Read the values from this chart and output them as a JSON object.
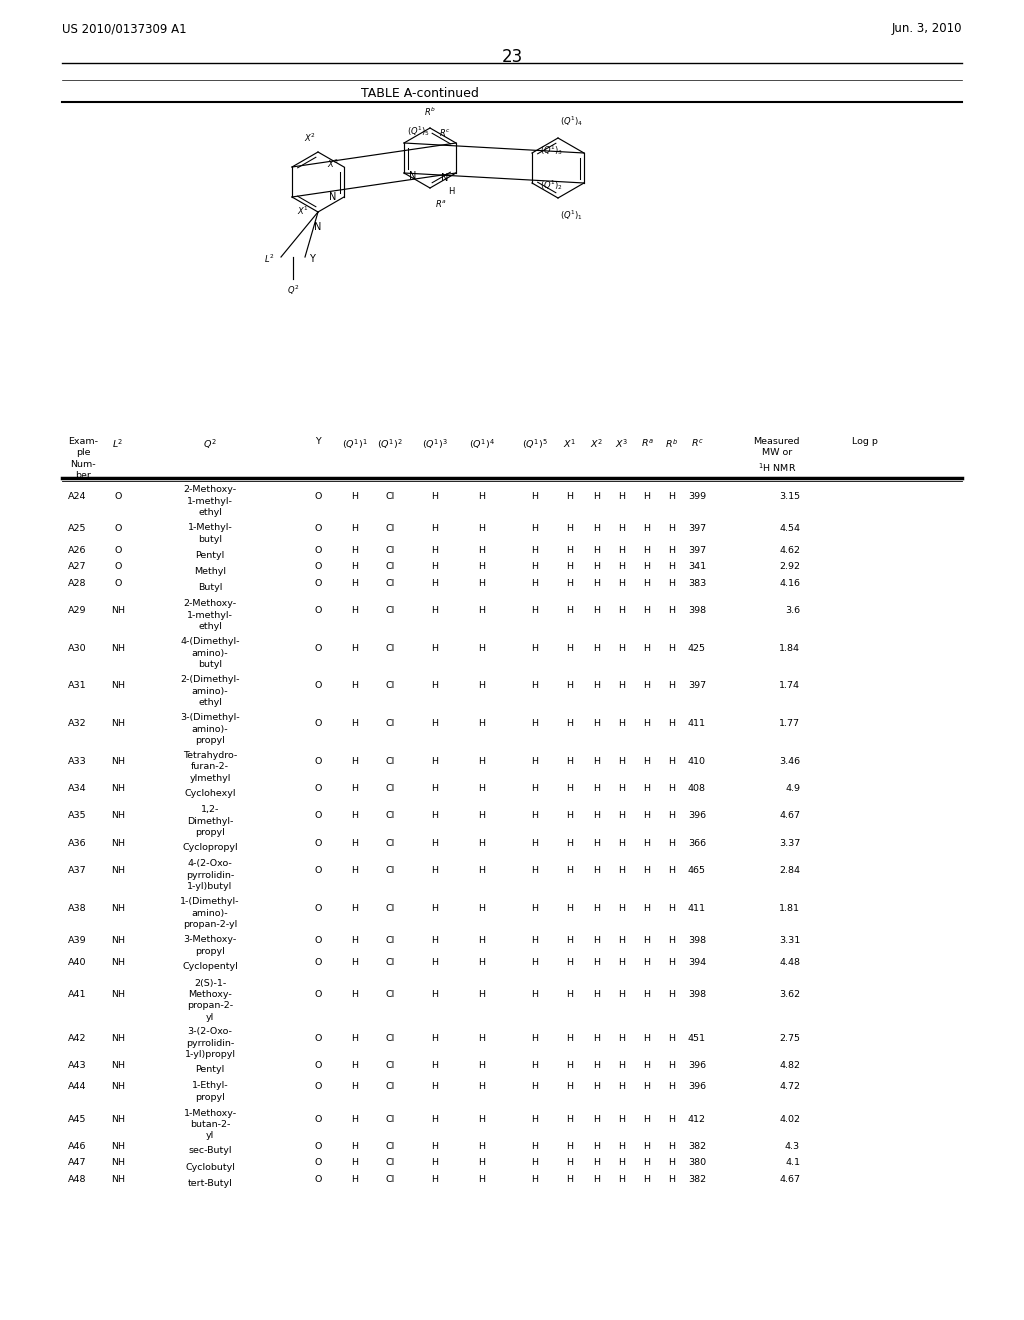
{
  "page_header_left": "US 2010/0137309 A1",
  "page_header_right": "Jun. 3, 2010",
  "page_number": "23",
  "table_title": "TABLE A-continued",
  "rows": [
    [
      "A24",
      "O",
      "2-Methoxy-\n1-methyl-\nethyl",
      "O",
      "H",
      "Cl",
      "H",
      "H",
      "H",
      "H",
      "H",
      "H",
      "H",
      "H",
      "399",
      "3.15"
    ],
    [
      "A25",
      "O",
      "1-Methyl-\nbutyl",
      "O",
      "H",
      "Cl",
      "H",
      "H",
      "H",
      "H",
      "H",
      "H",
      "H",
      "H",
      "397",
      "4.54"
    ],
    [
      "A26",
      "O",
      "Pentyl",
      "O",
      "H",
      "Cl",
      "H",
      "H",
      "H",
      "H",
      "H",
      "H",
      "H",
      "H",
      "397",
      "4.62"
    ],
    [
      "A27",
      "O",
      "Methyl",
      "O",
      "H",
      "Cl",
      "H",
      "H",
      "H",
      "H",
      "H",
      "H",
      "H",
      "H",
      "341",
      "2.92"
    ],
    [
      "A28",
      "O",
      "Butyl",
      "O",
      "H",
      "Cl",
      "H",
      "H",
      "H",
      "H",
      "H",
      "H",
      "H",
      "H",
      "383",
      "4.16"
    ],
    [
      "A29",
      "NH",
      "2-Methoxy-\n1-methyl-\nethyl",
      "O",
      "H",
      "Cl",
      "H",
      "H",
      "H",
      "H",
      "H",
      "H",
      "H",
      "H",
      "398",
      "3.6"
    ],
    [
      "A30",
      "NH",
      "4-(Dimethyl-\namino)-\nbutyl",
      "O",
      "H",
      "Cl",
      "H",
      "H",
      "H",
      "H",
      "H",
      "H",
      "H",
      "H",
      "425",
      "1.84"
    ],
    [
      "A31",
      "NH",
      "2-(Dimethyl-\namino)-\nethyl",
      "O",
      "H",
      "Cl",
      "H",
      "H",
      "H",
      "H",
      "H",
      "H",
      "H",
      "H",
      "397",
      "1.74"
    ],
    [
      "A32",
      "NH",
      "3-(Dimethyl-\namino)-\npropyl",
      "O",
      "H",
      "Cl",
      "H",
      "H",
      "H",
      "H",
      "H",
      "H",
      "H",
      "H",
      "411",
      "1.77"
    ],
    [
      "A33",
      "NH",
      "Tetrahydro-\nfuran-2-\nylmethyl",
      "O",
      "H",
      "Cl",
      "H",
      "H",
      "H",
      "H",
      "H",
      "H",
      "H",
      "H",
      "410",
      "3.46"
    ],
    [
      "A34",
      "NH",
      "Cyclohexyl",
      "O",
      "H",
      "Cl",
      "H",
      "H",
      "H",
      "H",
      "H",
      "H",
      "H",
      "H",
      "408",
      "4.9"
    ],
    [
      "A35",
      "NH",
      "1,2-\nDimethyl-\npropyl",
      "O",
      "H",
      "Cl",
      "H",
      "H",
      "H",
      "H",
      "H",
      "H",
      "H",
      "H",
      "396",
      "4.67"
    ],
    [
      "A36",
      "NH",
      "Cyclopropyl",
      "O",
      "H",
      "Cl",
      "H",
      "H",
      "H",
      "H",
      "H",
      "H",
      "H",
      "H",
      "366",
      "3.37"
    ],
    [
      "A37",
      "NH",
      "4-(2-Oxo-\npyrrolidin-\n1-yl)butyl",
      "O",
      "H",
      "Cl",
      "H",
      "H",
      "H",
      "H",
      "H",
      "H",
      "H",
      "H",
      "465",
      "2.84"
    ],
    [
      "A38",
      "NH",
      "1-(Dimethyl-\namino)-\npropan-2-yl",
      "O",
      "H",
      "Cl",
      "H",
      "H",
      "H",
      "H",
      "H",
      "H",
      "H",
      "H",
      "411",
      "1.81"
    ],
    [
      "A39",
      "NH",
      "3-Methoxy-\npropyl",
      "O",
      "H",
      "Cl",
      "H",
      "H",
      "H",
      "H",
      "H",
      "H",
      "H",
      "H",
      "398",
      "3.31"
    ],
    [
      "A40",
      "NH",
      "Cyclopentyl",
      "O",
      "H",
      "Cl",
      "H",
      "H",
      "H",
      "H",
      "H",
      "H",
      "H",
      "H",
      "394",
      "4.48"
    ],
    [
      "A41",
      "NH",
      "2(S)-1-\nMethoxy-\npropan-2-\nyl",
      "O",
      "H",
      "Cl",
      "H",
      "H",
      "H",
      "H",
      "H",
      "H",
      "H",
      "H",
      "398",
      "3.62"
    ],
    [
      "A42",
      "NH",
      "3-(2-Oxo-\npyrrolidin-\n1-yl)propyl",
      "O",
      "H",
      "Cl",
      "H",
      "H",
      "H",
      "H",
      "H",
      "H",
      "H",
      "H",
      "451",
      "2.75"
    ],
    [
      "A43",
      "NH",
      "Pentyl",
      "O",
      "H",
      "Cl",
      "H",
      "H",
      "H",
      "H",
      "H",
      "H",
      "H",
      "H",
      "396",
      "4.82"
    ],
    [
      "A44",
      "NH",
      "1-Ethyl-\npropyl",
      "O",
      "H",
      "Cl",
      "H",
      "H",
      "H",
      "H",
      "H",
      "H",
      "H",
      "H",
      "396",
      "4.72"
    ],
    [
      "A45",
      "NH",
      "1-Methoxy-\nbutan-2-\nyl",
      "O",
      "H",
      "Cl",
      "H",
      "H",
      "H",
      "H",
      "H",
      "H",
      "H",
      "H",
      "412",
      "4.02"
    ],
    [
      "A46",
      "NH",
      "sec-Butyl",
      "O",
      "H",
      "Cl",
      "H",
      "H",
      "H",
      "H",
      "H",
      "H",
      "H",
      "H",
      "382",
      "4.3"
    ],
    [
      "A47",
      "NH",
      "Cyclobutyl",
      "O",
      "H",
      "Cl",
      "H",
      "H",
      "H",
      "H",
      "H",
      "H",
      "H",
      "H",
      "380",
      "4.1"
    ],
    [
      "A48",
      "NH",
      "tert-Butyl",
      "O",
      "H",
      "Cl",
      "H",
      "H",
      "H",
      "H",
      "H",
      "H",
      "H",
      "H",
      "382",
      "4.67"
    ]
  ]
}
